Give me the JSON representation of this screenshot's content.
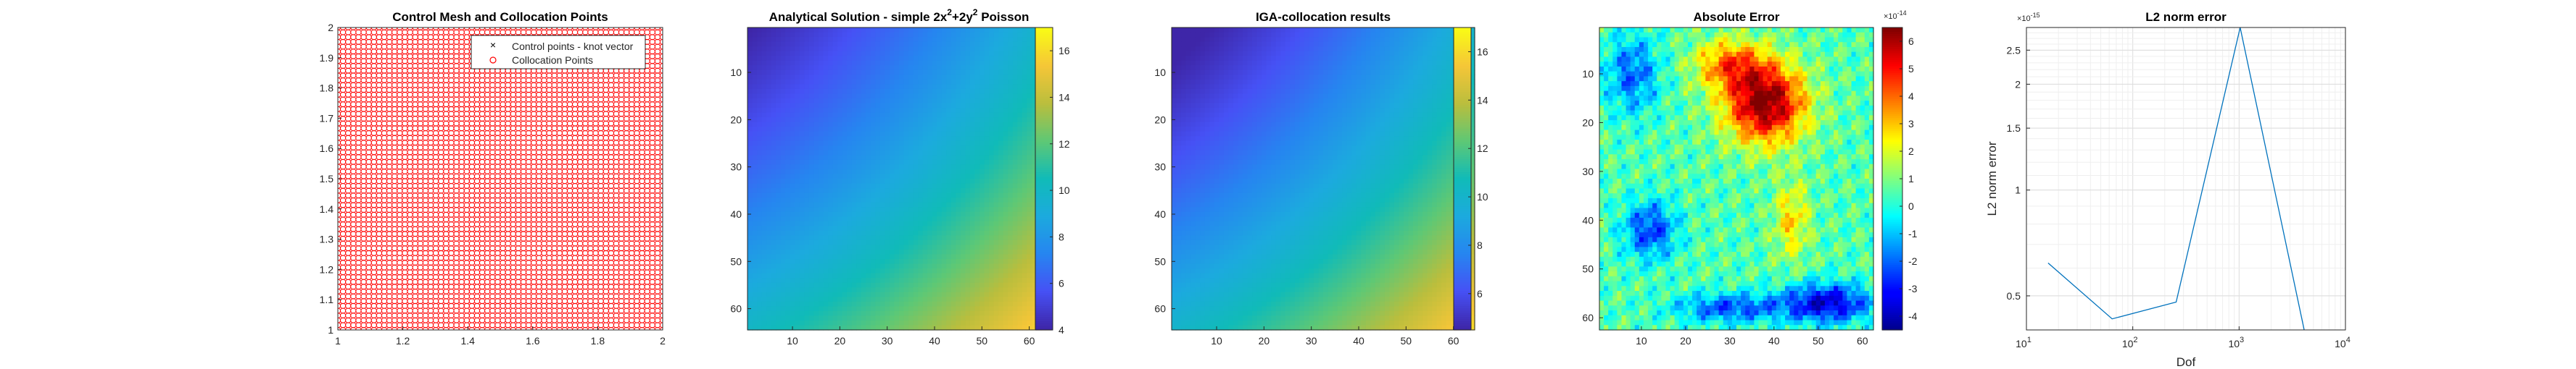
{
  "chart_data": [
    {
      "type": "scatter",
      "title": "Control Mesh and Collocation Points",
      "xlim": [
        1,
        2
      ],
      "ylim": [
        1,
        2
      ],
      "xticks": [
        "1",
        "1.2",
        "1.4",
        "1.6",
        "1.8",
        "2"
      ],
      "yticks": [
        "1",
        "1.1",
        "1.2",
        "1.3",
        "1.4",
        "1.5",
        "1.6",
        "1.7",
        "1.8",
        "1.9",
        "2"
      ],
      "grid_points_per_side": 64,
      "legend": {
        "position": "top-right",
        "entries": [
          "Control points - knot vector",
          "Collocation Points"
        ]
      },
      "colors": {
        "control": "#000000",
        "collocation": "#ff0000"
      }
    },
    {
      "type": "heatmap",
      "title_parts": [
        "Analytical Solution - simple 2x",
        "2",
        "+2y",
        "2",
        " Poisson"
      ],
      "matrix_size": 64,
      "function": "2x^2+2y^2, x,y in [1,2]",
      "clim": [
        4,
        17
      ],
      "colormap": "parula",
      "xticks": [
        "10",
        "20",
        "30",
        "40",
        "50",
        "60"
      ],
      "yticks": [
        "10",
        "20",
        "30",
        "40",
        "50",
        "60"
      ],
      "colorbar_ticks": [
        "4",
        "6",
        "8",
        "10",
        "12",
        "14",
        "16"
      ]
    },
    {
      "type": "heatmap",
      "title": "IGA-collocation results",
      "matrix_size": 64,
      "function": "2x^2+2y^2, x,y in [1,2]",
      "clim": [
        4.5,
        17
      ],
      "colormap": "parula",
      "xticks": [
        "10",
        "20",
        "30",
        "40",
        "50",
        "60"
      ],
      "yticks": [
        "10",
        "20",
        "30",
        "40",
        "50",
        "60"
      ],
      "colorbar_ticks": [
        "6",
        "8",
        "10",
        "12",
        "14",
        "16"
      ]
    },
    {
      "type": "heatmap",
      "title": "Absolute Error",
      "matrix_size": 62,
      "clim": [
        -4.5e-14,
        6.5e-14
      ],
      "colormap": "jet",
      "xticks": [
        "10",
        "20",
        "30",
        "40",
        "50",
        "60"
      ],
      "yticks": [
        "10",
        "20",
        "30",
        "40",
        "50",
        "60"
      ],
      "colorbar_ticks": [
        "-4",
        "-3",
        "-2",
        "-1",
        "0",
        "1",
        "2",
        "3",
        "4",
        "5",
        "6"
      ],
      "colorbar_multiplier": "×10",
      "colorbar_exponent": "-14",
      "high_region": {
        "col": 38,
        "row": 16,
        "peak": 6.5e-14
      },
      "low_region": {
        "col": 52,
        "row": 57,
        "trough": -4.5e-14
      }
    },
    {
      "type": "line",
      "title": "L2 norm error",
      "xlabel": "Dof",
      "ylabel": "L2 norm error",
      "xscale": "log",
      "yscale": "log",
      "xlim": [
        10,
        10000
      ],
      "ylim": [
        0.4,
        2.9
      ],
      "y_multiplier": "×10",
      "y_exponent": "-15",
      "xticks": [
        {
          "base": "10",
          "exp": "1"
        },
        {
          "base": "10",
          "exp": "2"
        },
        {
          "base": "10",
          "exp": "3"
        },
        {
          "base": "10",
          "exp": "4"
        }
      ],
      "yticks": [
        "0.5",
        "1",
        "1.5",
        "2",
        "2.5"
      ],
      "series": [
        {
          "x": [
            16,
            64,
            256,
            1024,
            4096
          ],
          "values": [
            0.62,
            0.43,
            0.48,
            2.9,
            0.4
          ]
        }
      ],
      "color": "#0072bd"
    }
  ]
}
